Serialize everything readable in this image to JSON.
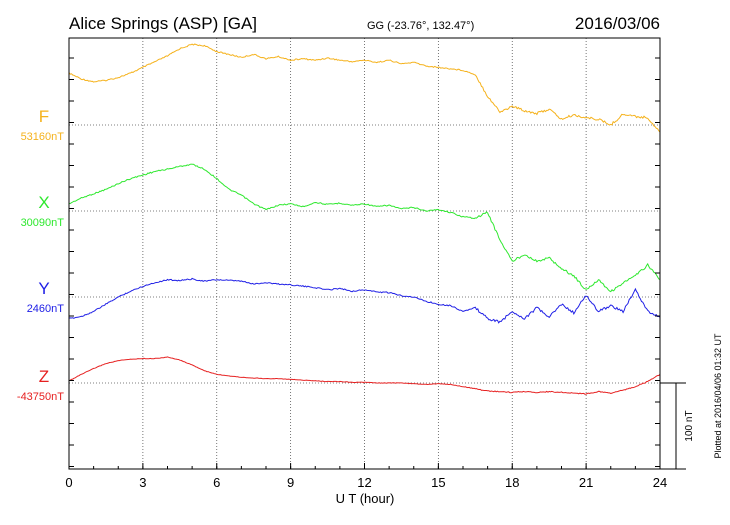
{
  "header": {
    "station": "Alice Springs (ASP)  [GA]",
    "coords": "GG (-23.76°, 132.47°)",
    "date": "2016/03/06"
  },
  "footer_note": "Plotted at 2016/04/06 01:32 UT",
  "chart_data": {
    "type": "line",
    "xlabel": "U T (hour)",
    "xlim": [
      0,
      24
    ],
    "xticks": [
      "0",
      "3",
      "6",
      "9",
      "12",
      "15",
      "18",
      "21",
      "24"
    ],
    "scale_bar": {
      "label": "100 nT",
      "value": 100
    },
    "grid": true,
    "series": [
      {
        "name": "F",
        "baseline_label": "53160nT",
        "baseline": 53160,
        "color": "#f5b21c",
        "x": [
          0,
          0.5,
          1,
          1.5,
          2,
          2.5,
          3,
          3.5,
          4,
          4.5,
          5,
          5.5,
          6,
          6.5,
          7,
          7.5,
          8,
          8.5,
          9,
          9.5,
          10,
          10.5,
          11,
          11.5,
          12,
          12.5,
          13,
          13.5,
          14,
          14.5,
          15,
          15.5,
          16,
          16.5,
          17,
          17.5,
          18,
          18.5,
          19,
          19.5,
          20,
          20.5,
          21,
          21.5,
          22,
          22.5,
          23,
          23.5,
          24
        ],
        "values": [
          53232,
          53224,
          53220,
          53222,
          53226,
          53232,
          53240,
          53248,
          53256,
          53266,
          53272,
          53270,
          53262,
          53258,
          53254,
          53258,
          53252,
          53255,
          53250,
          53252,
          53250,
          53253,
          53250,
          53248,
          53250,
          53247,
          53250,
          53245,
          53247,
          53242,
          53240,
          53238,
          53236,
          53230,
          53200,
          53178,
          53186,
          53180,
          53176,
          53182,
          53168,
          53174,
          53170,
          53168,
          53160,
          53175,
          53172,
          53170,
          53150
        ]
      },
      {
        "name": "X",
        "baseline_label": "30090nT",
        "baseline": 30090,
        "color": "#2ee82e",
        "x": [
          0,
          0.5,
          1,
          1.5,
          2,
          2.5,
          3,
          3.5,
          4,
          4.5,
          5,
          5.5,
          6,
          6.5,
          7,
          7.5,
          8,
          8.5,
          9,
          9.5,
          10,
          10.5,
          11,
          11.5,
          12,
          12.5,
          13,
          13.5,
          14,
          14.5,
          15,
          15.5,
          16,
          16.5,
          17,
          17.5,
          18,
          18.5,
          19,
          19.5,
          20,
          20.5,
          21,
          21.5,
          22,
          22.5,
          23,
          23.5,
          24
        ],
        "values": [
          30100,
          30108,
          30114,
          30120,
          30128,
          30135,
          30140,
          30145,
          30148,
          30152,
          30155,
          30148,
          30135,
          30120,
          30112,
          30100,
          30092,
          30098,
          30100,
          30096,
          30102,
          30099,
          30101,
          30098,
          30100,
          30096,
          30098,
          30093,
          30095,
          30090,
          30092,
          30088,
          30082,
          30080,
          30088,
          30050,
          30020,
          30030,
          30020,
          30025,
          30010,
          30000,
          29980,
          29995,
          29978,
          29990,
          30000,
          30015,
          29995
        ]
      },
      {
        "name": "Y",
        "baseline_label": "2460nT",
        "baseline": 2460,
        "color": "#2020e6",
        "x": [
          0,
          0.5,
          1,
          1.5,
          2,
          2.5,
          3,
          3.5,
          4,
          4.5,
          5,
          5.5,
          6,
          6.5,
          7,
          7.5,
          8,
          8.5,
          9,
          9.5,
          10,
          10.5,
          11,
          11.5,
          12,
          12.5,
          13,
          13.5,
          14,
          14.5,
          15,
          15.5,
          16,
          16.5,
          17,
          17.5,
          18,
          18.5,
          19,
          19.5,
          20,
          20.5,
          21,
          21.5,
          22,
          22.5,
          23,
          23.5,
          24
        ],
        "values": [
          2430,
          2433,
          2440,
          2450,
          2460,
          2468,
          2475,
          2480,
          2484,
          2483,
          2485,
          2482,
          2484,
          2483,
          2482,
          2478,
          2480,
          2478,
          2477,
          2475,
          2473,
          2470,
          2472,
          2468,
          2470,
          2467,
          2466,
          2462,
          2460,
          2454,
          2450,
          2448,
          2440,
          2445,
          2430,
          2425,
          2440,
          2430,
          2445,
          2432,
          2450,
          2438,
          2462,
          2440,
          2448,
          2440,
          2470,
          2440,
          2432
        ]
      },
      {
        "name": "Z",
        "baseline_label": "-43750nT",
        "baseline": -43750,
        "color": "#e62020",
        "x": [
          0,
          0.5,
          1,
          1.5,
          2,
          2.5,
          3,
          3.5,
          4,
          4.5,
          5,
          5.5,
          6,
          6.5,
          7,
          7.5,
          8,
          8.5,
          9,
          9.5,
          10,
          10.5,
          11,
          11.5,
          12,
          12.5,
          13,
          13.5,
          14,
          14.5,
          15,
          15.5,
          16,
          16.5,
          17,
          17.5,
          18,
          18.5,
          19,
          19.5,
          20,
          20.5,
          21,
          21.5,
          22,
          22.5,
          23,
          23.5,
          24
        ],
        "values": [
          -43747,
          -43738,
          -43730,
          -43723,
          -43719,
          -43717,
          -43716,
          -43716,
          -43714,
          -43718,
          -43725,
          -43733,
          -43738,
          -43740,
          -43742,
          -43743,
          -43744,
          -43744,
          -43745,
          -43746,
          -43747,
          -43748,
          -43748,
          -43749,
          -43749,
          -43750,
          -43750,
          -43750,
          -43751,
          -43752,
          -43751,
          -43752,
          -43755,
          -43758,
          -43761,
          -43762,
          -43763,
          -43762,
          -43763,
          -43762,
          -43763,
          -43764,
          -43765,
          -43762,
          -43764,
          -43760,
          -43755,
          -43748,
          -43738
        ]
      }
    ]
  }
}
